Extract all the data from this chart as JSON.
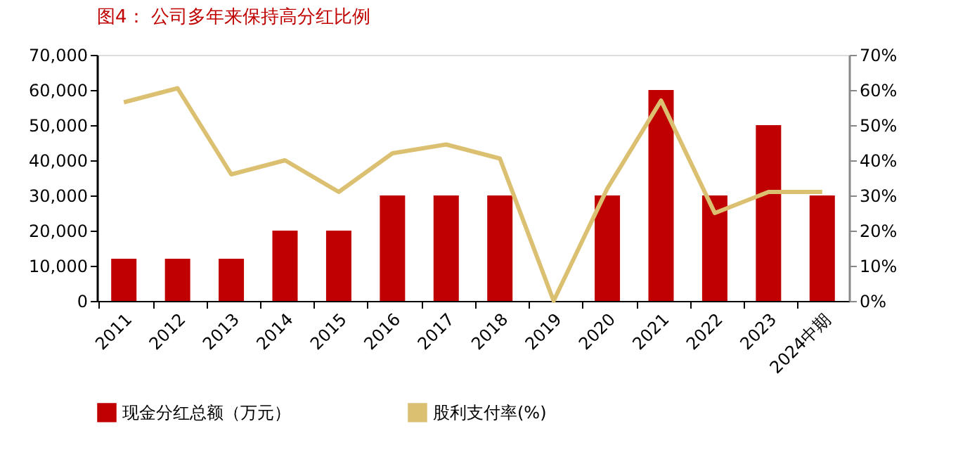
{
  "chart_data": {
    "type": "bar",
    "title": "图4：  公司多年来保持高分红比例",
    "categories": [
      "2011",
      "2012",
      "2013",
      "2014",
      "2015",
      "2016",
      "2017",
      "2018",
      "2019",
      "2020",
      "2021",
      "2022",
      "2023",
      "2024中期"
    ],
    "series": [
      {
        "name": "现金分红总额（万元）",
        "color": "#c00000",
        "values": [
          12000,
          12000,
          12000,
          20000,
          20000,
          30000,
          30000,
          30000,
          0,
          30000,
          60000,
          30000,
          50000,
          30000
        ]
      },
      {
        "name": "股利支付率(%)",
        "type": "line",
        "axis": "y2",
        "color": "#dcc072",
        "values": [
          56.5,
          60.5,
          36,
          40,
          31,
          42,
          44.5,
          40.5,
          0,
          32,
          57,
          25,
          31,
          31
        ]
      }
    ],
    "ylim": [
      0,
      70000
    ],
    "yticks": [
      {
        "value": 0,
        "label": "0"
      },
      {
        "value": 10000,
        "label": "10,000"
      },
      {
        "value": 20000,
        "label": "20,000"
      },
      {
        "value": 30000,
        "label": "30,000"
      },
      {
        "value": 40000,
        "label": "40,000"
      },
      {
        "value": 50000,
        "label": "50,000"
      },
      {
        "value": 60000,
        "label": "60,000"
      },
      {
        "value": 70000,
        "label": "70,000"
      }
    ],
    "y2lim": [
      0,
      70
    ],
    "y2ticks": [
      {
        "value": 0,
        "label": "0%"
      },
      {
        "value": 10,
        "label": "10%"
      },
      {
        "value": 20,
        "label": "20%"
      },
      {
        "value": 30,
        "label": "30%"
      },
      {
        "value": 40,
        "label": "40%"
      },
      {
        "value": 50,
        "label": "50%"
      },
      {
        "value": 60,
        "label": "60%"
      },
      {
        "value": 70,
        "label": "70%"
      }
    ],
    "grid": false,
    "legend": "bottom",
    "marker": "none",
    "line_style": "solid"
  }
}
